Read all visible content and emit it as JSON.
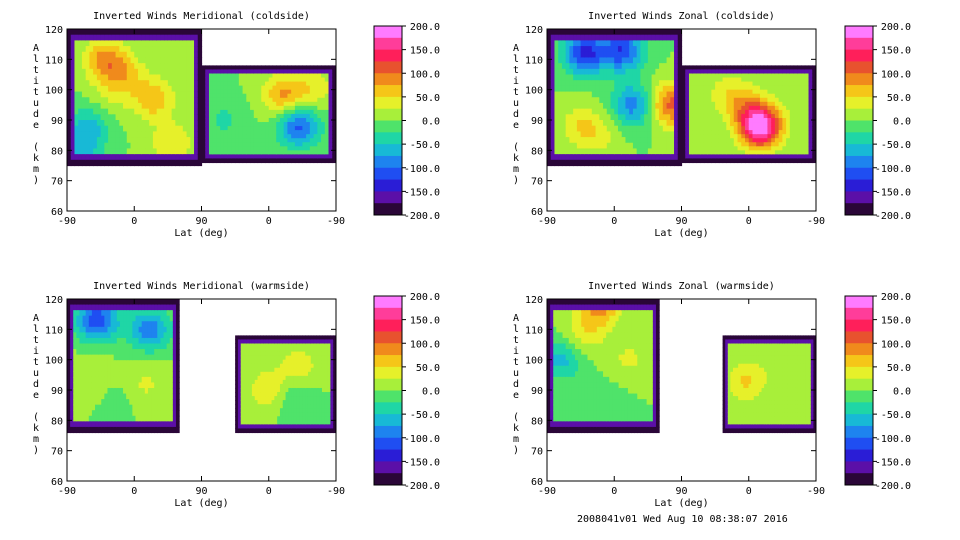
{
  "colorbar": {
    "labels": [
      "200.0",
      "150.0",
      "100.0",
      "50.0",
      "0.0",
      "-50.0",
      "-100.0",
      "-150.0",
      "-200.0"
    ],
    "colors": [
      "#ff7bff",
      "#ff3d9a",
      "#ff1f5a",
      "#e8522e",
      "#f08a1c",
      "#f5c618",
      "#e6f02a",
      "#a8ef3a",
      "#4fe36a",
      "#1fd6a6",
      "#18b9d6",
      "#1e83ef",
      "#1f4ef2",
      "#2a1dd6",
      "#5b0fa8",
      "#2a0638"
    ]
  },
  "footer": "2008041v01 Wed Aug 10 08:38:07 2016",
  "chart_data": [
    {
      "type": "heatmap",
      "title": "Inverted Winds Meridional (coldside)",
      "xlabel": "Lat (deg)",
      "ylabel": "Altitude (km)",
      "xticks": [
        "-90",
        "0",
        "90",
        "0",
        "-90"
      ],
      "yticks": [
        "60",
        "70",
        "80",
        "90",
        "100",
        "110",
        "120"
      ],
      "ylim": [
        60,
        120
      ],
      "zlim": [
        -200,
        200
      ],
      "segments": [
        {
          "lat_start": -90,
          "lat_end": 90,
          "alt_bottom": 75,
          "alt_top": 120,
          "blobs": [
            [
              -40,
              110,
              80
            ],
            [
              -15,
              105,
              55
            ],
            [
              -60,
              88,
              -55
            ],
            [
              -70,
              80,
              -45
            ],
            [
              25,
              97,
              70
            ],
            [
              50,
              82,
              50
            ],
            [
              -35,
              97,
              20
            ]
          ]
        },
        {
          "lat_start": 90,
          "lat_end": -90,
          "alt_bottom": 76,
          "alt_top": 108,
          "blobs": [
            [
              -20,
              98,
              80
            ],
            [
              -40,
              88,
              -110
            ],
            [
              60,
              90,
              -30
            ],
            [
              -60,
              100,
              40
            ]
          ]
        }
      ]
    },
    {
      "type": "heatmap",
      "title": "Inverted Winds Zonal (coldside)",
      "xlabel": "Lat (deg)",
      "ylabel": "Altitude (km)",
      "xticks": [
        "-90",
        "0",
        "90",
        "0",
        "-90"
      ],
      "yticks": [
        "60",
        "70",
        "80",
        "90",
        "100",
        "110",
        "120"
      ],
      "ylim": [
        60,
        120
      ],
      "zlim": [
        -200,
        200
      ],
      "segments": [
        {
          "lat_start": -90,
          "lat_end": 90,
          "alt_bottom": 75,
          "alt_top": 120,
          "blobs": [
            [
              -40,
              112,
              -130
            ],
            [
              10,
              113,
              -120
            ],
            [
              25,
              95,
              -90
            ],
            [
              -45,
              88,
              45
            ],
            [
              75,
              95,
              110
            ],
            [
              -20,
              85,
              30
            ]
          ]
        },
        {
          "lat_start": 90,
          "lat_end": -90,
          "alt_bottom": 76,
          "alt_top": 108,
          "blobs": [
            [
              -15,
              88,
              210
            ],
            [
              10,
              96,
              60
            ],
            [
              40,
              100,
              20
            ],
            [
              -60,
              100,
              10
            ]
          ]
        }
      ]
    },
    {
      "type": "heatmap",
      "title": "Inverted Winds Meridional (warmside)",
      "xlabel": "Lat (deg)",
      "ylabel": "Altitude (km)",
      "xticks": [
        "-90",
        "0",
        "90",
        "0",
        "-90"
      ],
      "yticks": [
        "60",
        "70",
        "80",
        "90",
        "100",
        "110",
        "120"
      ],
      "ylim": [
        60,
        120
      ],
      "zlim": [
        -200,
        200
      ],
      "segments": [
        {
          "lat_start": -90,
          "lat_end": 60,
          "alt_bottom": 76,
          "alt_top": 120,
          "blobs": [
            [
              -50,
              113,
              -120
            ],
            [
              20,
              110,
              -90
            ],
            [
              -60,
              95,
              25
            ],
            [
              15,
              92,
              30
            ],
            [
              -20,
              88,
              -10
            ]
          ]
        },
        {
          "lat_start": 45,
          "lat_end": -90,
          "alt_bottom": 76,
          "alt_top": 108,
          "blobs": [
            [
              -40,
              98,
              40
            ],
            [
              0,
              90,
              50
            ],
            [
              -30,
              88,
              -30
            ],
            [
              60,
              95,
              0
            ]
          ]
        }
      ]
    },
    {
      "type": "heatmap",
      "title": "Inverted Winds Zonal (warmside)",
      "xlabel": "Lat (deg)",
      "ylabel": "Altitude (km)",
      "xticks": [
        "-90",
        "0",
        "90",
        "0",
        "-90"
      ],
      "yticks": [
        "60",
        "70",
        "80",
        "90",
        "100",
        "110",
        "120"
      ],
      "ylim": [
        60,
        120
      ],
      "zlim": [
        -200,
        200
      ],
      "segments": [
        {
          "lat_start": -90,
          "lat_end": 60,
          "alt_bottom": 76,
          "alt_top": 120,
          "blobs": [
            [
              -20,
              118,
              90
            ],
            [
              -40,
              108,
              40
            ],
            [
              -70,
              100,
              -60
            ],
            [
              20,
              100,
              30
            ],
            [
              -10,
              88,
              -10
            ]
          ]
        },
        {
          "lat_start": 35,
          "lat_end": -90,
          "alt_bottom": 76,
          "alt_top": 108,
          "blobs": [
            [
              5,
              93,
              55
            ],
            [
              40,
              95,
              -10
            ],
            [
              -40,
              97,
              10
            ]
          ]
        }
      ]
    }
  ]
}
